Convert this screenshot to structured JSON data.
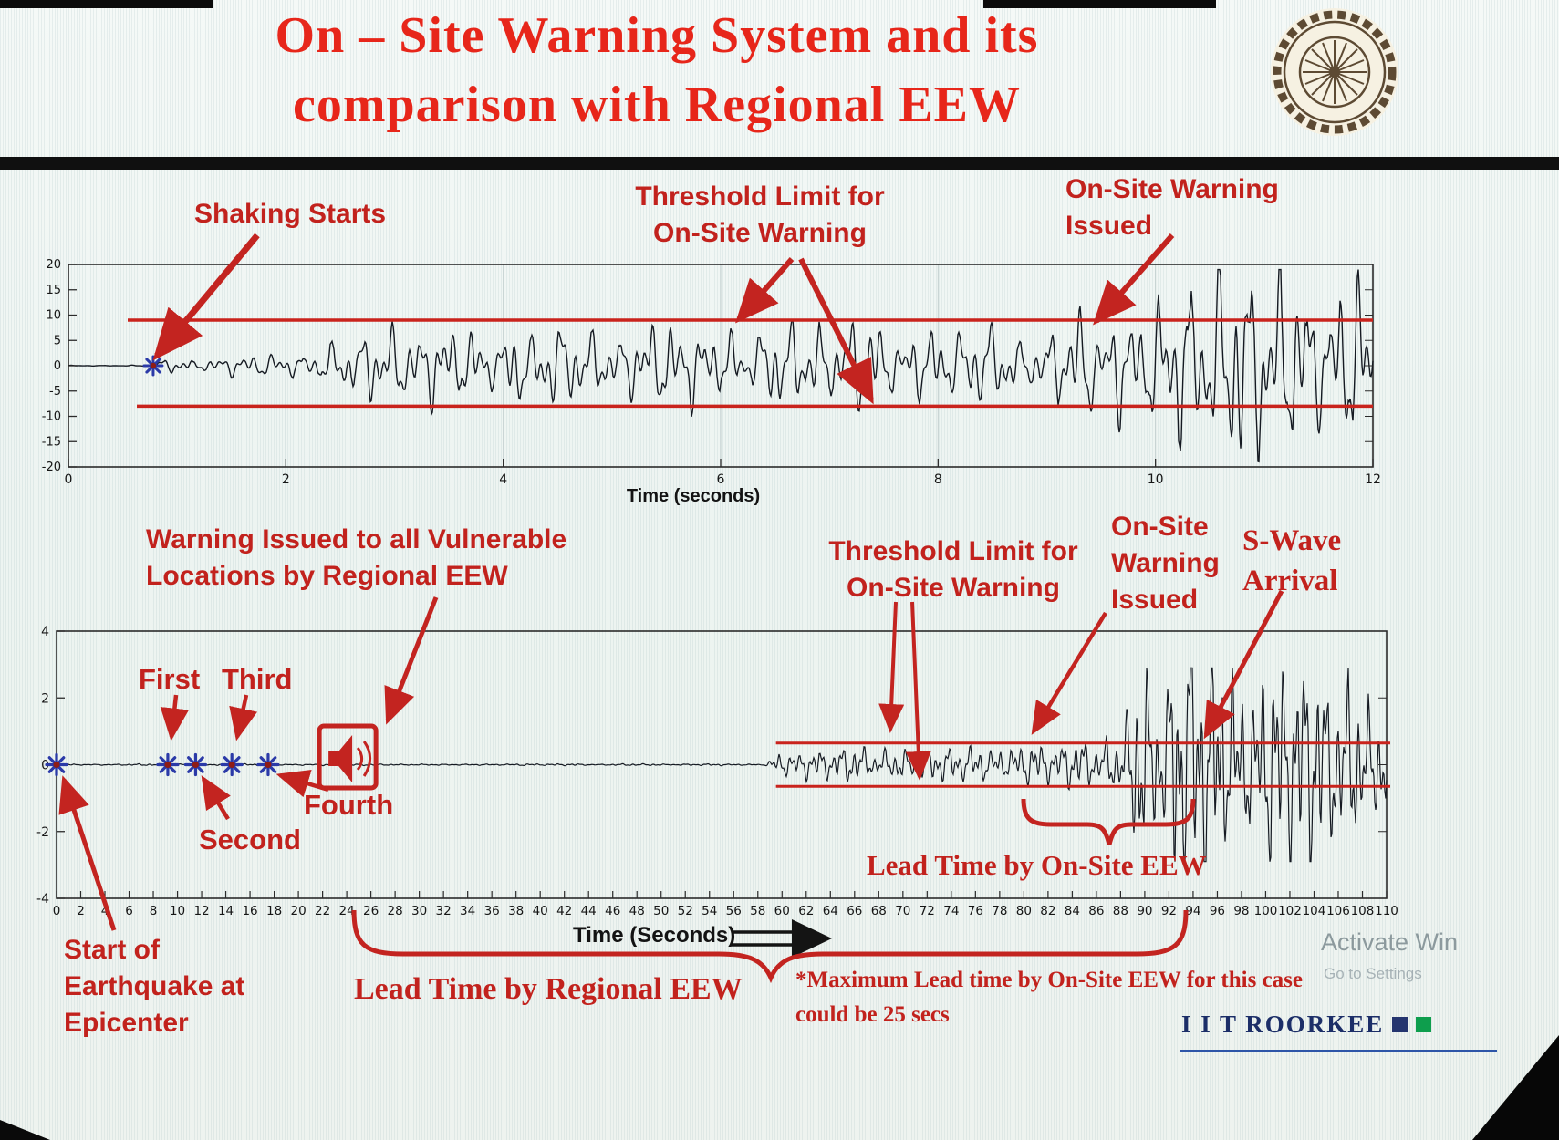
{
  "header": {
    "title": "On – Site Warning System and its\ncomparison with Regional EEW"
  },
  "colors": {
    "title_red": "#e7261a",
    "annotation_red": "#c2221d",
    "threshold_red": "#c9231c",
    "waveform": "#151a22",
    "marker_blue": "#2b3aa8",
    "brand_navy": "#1c2e68",
    "brand_square_blue": "#24356f",
    "brand_square_green": "#0e9e4d"
  },
  "top_chart_annotations": {
    "shaking_starts": "Shaking Starts",
    "threshold_limit": "Threshold Limit for\nOn-Site Warning",
    "warning_issued": "On-Site Warning\nIssued"
  },
  "bottom_chart_annotations": {
    "regional_warning": "Warning Issued to all Vulnerable\nLocations by Regional EEW",
    "first": "First",
    "second": "Second",
    "third": "Third",
    "fourth": "Fourth",
    "threshold_limit": "Threshold Limit for\nOn-Site Warning",
    "onsite_warning": "On-Site\nWarning\nIssued",
    "swave": "S-Wave\nArrival",
    "lead_onsite": "Lead Time by On-Site EEW",
    "lead_regional": "Lead Time by Regional EEW",
    "max_note": "*Maximum Lead time by On-Site EEW for this case\ncould be 25 secs",
    "start_eq": "Start of\nEarthquake at\nEpicenter"
  },
  "footer": {
    "brand": "I I T ROORKEE",
    "watermark_line1": "Activate Win",
    "watermark_line2": "Go to Settings"
  },
  "chart_data": [
    {
      "type": "line",
      "name": "onsite-station-accelerogram",
      "title": "",
      "xlabel": "Time (seconds)",
      "ylabel": "",
      "xlim": [
        0,
        12
      ],
      "ylim": [
        -20,
        20
      ],
      "xticks": [
        0,
        2,
        4,
        6,
        8,
        10,
        12
      ],
      "yticks": [
        -20,
        -15,
        -10,
        -5,
        0,
        5,
        10,
        15,
        20
      ],
      "grid": "light-vertical",
      "threshold": {
        "upper": 9,
        "lower": -8
      },
      "shaking_onset_sec": 0.78,
      "onsite_warning_issued_sec": 9.5,
      "envelope": [
        [
          0,
          0.05
        ],
        [
          0.72,
          0.05
        ],
        [
          0.8,
          0.5
        ],
        [
          1.1,
          0.9
        ],
        [
          1.7,
          1.0
        ],
        [
          2.2,
          1.3
        ],
        [
          2.45,
          4.8
        ],
        [
          3.0,
          3.6
        ],
        [
          3.8,
          4.6
        ],
        [
          4.6,
          3.8
        ],
        [
          5.4,
          5.0
        ],
        [
          6.2,
          4.0
        ],
        [
          7.0,
          4.8
        ],
        [
          7.8,
          3.8
        ],
        [
          8.6,
          4.2
        ],
        [
          9.2,
          5.2
        ],
        [
          9.6,
          7.5
        ],
        [
          10.0,
          12
        ],
        [
          10.4,
          16
        ],
        [
          10.8,
          12
        ],
        [
          11.2,
          16
        ],
        [
          11.6,
          12
        ],
        [
          12,
          15
        ]
      ]
    },
    {
      "type": "line",
      "name": "regional-vs-onsite-timeline",
      "title": "",
      "xlabel": "Time (Seconds)",
      "ylabel": "",
      "xlim": [
        0,
        110
      ],
      "ylim": [
        -4,
        4
      ],
      "xtick_step": 2,
      "yticks": [
        -4,
        -2,
        0,
        2,
        4
      ],
      "grid": "off",
      "threshold": {
        "upper": 0.65,
        "lower": -0.65,
        "start_sec": 59.5
      },
      "p_wave_marker_sec": [
        0,
        9.2,
        11.5,
        14.5,
        17.5
      ],
      "regional_warning_icon_sec": 24,
      "onsite_warning_issued_sec": 80,
      "swave_arrival_sec": 93,
      "envelope": [
        [
          0,
          0.015
        ],
        [
          58.5,
          0.015
        ],
        [
          59.5,
          0.18
        ],
        [
          63,
          0.25
        ],
        [
          68,
          0.3
        ],
        [
          72,
          0.25
        ],
        [
          78,
          0.3
        ],
        [
          82,
          0.35
        ],
        [
          86,
          0.45
        ],
        [
          87.5,
          0.8
        ],
        [
          88.5,
          1.6
        ],
        [
          90,
          2.6
        ],
        [
          91.5,
          2.1
        ],
        [
          93,
          2.7
        ],
        [
          95,
          2.3
        ],
        [
          97,
          2.6
        ],
        [
          99,
          2.0
        ],
        [
          101,
          2.3
        ],
        [
          103,
          1.7
        ],
        [
          105,
          2.0
        ],
        [
          107,
          1.5
        ],
        [
          109,
          1.7
        ],
        [
          110,
          1.6
        ]
      ]
    }
  ]
}
